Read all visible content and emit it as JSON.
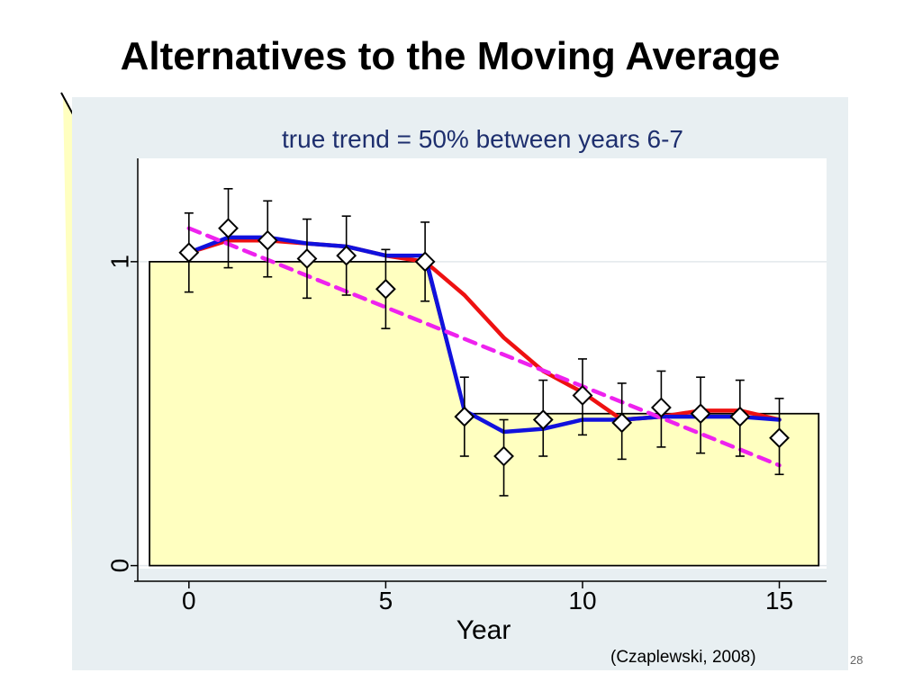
{
  "slide": {
    "title": "Alternatives to the Moving Average",
    "citation": "(Czaplewski, 2008)",
    "page_number": "28"
  },
  "chart_data": {
    "type": "line",
    "subtitle": "true trend = 50% between years 6-7",
    "xlabel": "Year",
    "ylabel": "",
    "xlim": [
      -1.3,
      16.2
    ],
    "ylim": [
      -0.01,
      1.34
    ],
    "x_ticks": [
      0,
      5,
      10,
      15
    ],
    "y_ticks": [
      0,
      1
    ],
    "grid": "horizontal",
    "colors": {
      "plot_region_bg": "#e8eff2",
      "plot_bg": "#ffffff",
      "truth_fill": "#ffffc0",
      "red": "#ee1111",
      "blue": "#1111dd",
      "magenta": "#ee22ee",
      "markers": "#000000"
    },
    "truth_step": {
      "x": [
        -1,
        6,
        7,
        16
      ],
      "y": [
        1.0,
        1.0,
        0.5,
        0.5
      ]
    },
    "observations": {
      "x": [
        0,
        1,
        2,
        3,
        4,
        5,
        6,
        7,
        8,
        9,
        10,
        11,
        12,
        13,
        14,
        15
      ],
      "y": [
        1.03,
        1.11,
        1.07,
        1.01,
        1.02,
        0.91,
        1.0,
        0.49,
        0.36,
        0.48,
        0.56,
        0.47,
        0.52,
        0.5,
        0.49,
        0.42
      ],
      "lower": [
        0.9,
        0.98,
        0.95,
        0.88,
        0.89,
        0.78,
        0.87,
        0.36,
        0.23,
        0.36,
        0.43,
        0.35,
        0.39,
        0.37,
        0.36,
        0.3
      ],
      "upper": [
        1.16,
        1.24,
        1.2,
        1.14,
        1.15,
        1.04,
        1.13,
        0.62,
        0.48,
        0.61,
        0.68,
        0.6,
        0.64,
        0.62,
        0.61,
        0.55
      ]
    },
    "series": [
      {
        "color_key": "red",
        "style": "solid",
        "x": [
          0,
          1,
          2,
          3,
          4,
          5,
          6,
          7,
          8,
          9,
          10,
          11,
          12,
          13,
          14,
          15
        ],
        "y": [
          1.03,
          1.07,
          1.07,
          1.06,
          1.05,
          1.02,
          1.0,
          0.89,
          0.75,
          0.64,
          0.57,
          0.48,
          0.49,
          0.51,
          0.51,
          0.48
        ]
      },
      {
        "color_key": "blue",
        "style": "solid",
        "x": [
          0,
          1,
          2,
          3,
          4,
          5,
          6,
          7,
          8,
          9,
          10,
          11,
          12,
          13,
          14,
          15
        ],
        "y": [
          1.03,
          1.08,
          1.08,
          1.06,
          1.05,
          1.02,
          1.02,
          0.51,
          0.44,
          0.45,
          0.48,
          0.48,
          0.49,
          0.49,
          0.49,
          0.48
        ]
      },
      {
        "color_key": "magenta",
        "style": "dashed",
        "x": [
          0,
          15
        ],
        "y": [
          1.11,
          0.33
        ]
      }
    ]
  }
}
